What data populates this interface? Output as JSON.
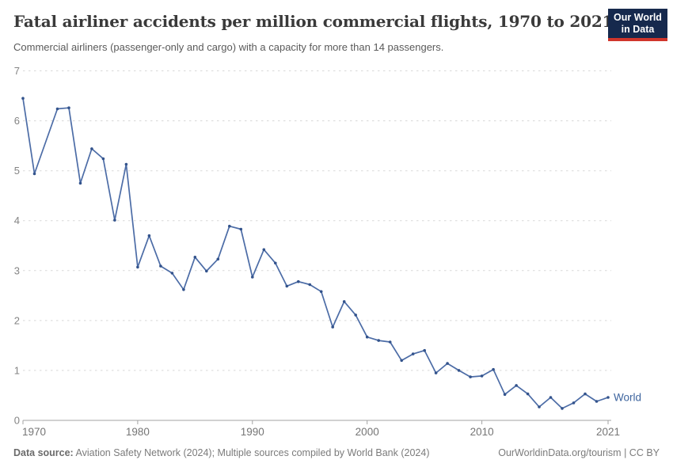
{
  "header": {
    "title": "Fatal airliner accidents per million commercial flights, 1970 to 2021",
    "subtitle": "Commercial airliners (passenger-only and cargo) with a capacity for more than 14 passengers.",
    "logo": {
      "line1": "Our World",
      "line2": "in Data"
    }
  },
  "chart_data": {
    "type": "line",
    "title": "Fatal airliner accidents per million commercial flights, 1970 to 2021",
    "subtitle": "Commercial airliners (passenger-only and cargo) with a capacity for more than 14 passengers.",
    "xlabel": "",
    "ylabel": "",
    "xlim": [
      1970,
      2021
    ],
    "ylim": [
      0,
      7
    ],
    "x_ticks": [
      1970,
      1980,
      1990,
      2000,
      2010,
      2021
    ],
    "y_ticks": [
      0,
      1,
      2,
      3,
      4,
      5,
      6,
      7
    ],
    "grid": "horizontal-dashed",
    "legend": "end-of-line-label",
    "series": [
      {
        "name": "World",
        "x": [
          1970,
          1971,
          1972,
          1973,
          1974,
          1975,
          1976,
          1977,
          1978,
          1979,
          1980,
          1981,
          1982,
          1983,
          1984,
          1985,
          1986,
          1987,
          1988,
          1989,
          1990,
          1991,
          1992,
          1993,
          1994,
          1995,
          1996,
          1997,
          1998,
          1999,
          2000,
          2001,
          2002,
          2003,
          2004,
          2005,
          2006,
          2007,
          2008,
          2009,
          2010,
          2011,
          2012,
          2013,
          2014,
          2015,
          2016,
          2017,
          2018,
          2019,
          2020,
          2021
        ],
        "values": [
          6.45,
          4.94,
          5.59,
          6.24,
          6.26,
          4.75,
          5.44,
          5.24,
          4.01,
          5.13,
          3.07,
          3.7,
          3.09,
          2.95,
          2.62,
          3.27,
          2.99,
          3.23,
          3.89,
          3.83,
          2.87,
          3.42,
          3.15,
          2.69,
          2.78,
          2.72,
          2.58,
          1.87,
          2.38,
          2.11,
          1.67,
          1.6,
          1.57,
          1.2,
          1.33,
          1.4,
          0.95,
          1.14,
          1.0,
          0.87,
          0.89,
          1.02,
          0.52,
          0.7,
          0.53,
          0.27,
          0.46,
          0.24,
          0.35,
          0.53,
          0.38,
          0.46
        ]
      }
    ],
    "no_marker_years": [
      1972
    ],
    "notes": "No point marker is drawn at 1972; the line runs straight between 1971 and 1973, so the 1972 value is read off the connecting segment."
  },
  "footer": {
    "source_label": "Data source:",
    "source_text": " Aviation Safety Network (2024); Multiple sources compiled by World Bank (2024)",
    "attribution": "OurWorldinData.org/tourism | CC BY"
  },
  "colors": {
    "line": "#4c6ca6",
    "marker": "#33538c",
    "grid": "#d8d8d8",
    "axis": "#a3a3a3",
    "title": "#3a3a3a",
    "world_label": "#3d649e",
    "logo_bg": "#16294d",
    "logo_red": "#d0352b"
  }
}
